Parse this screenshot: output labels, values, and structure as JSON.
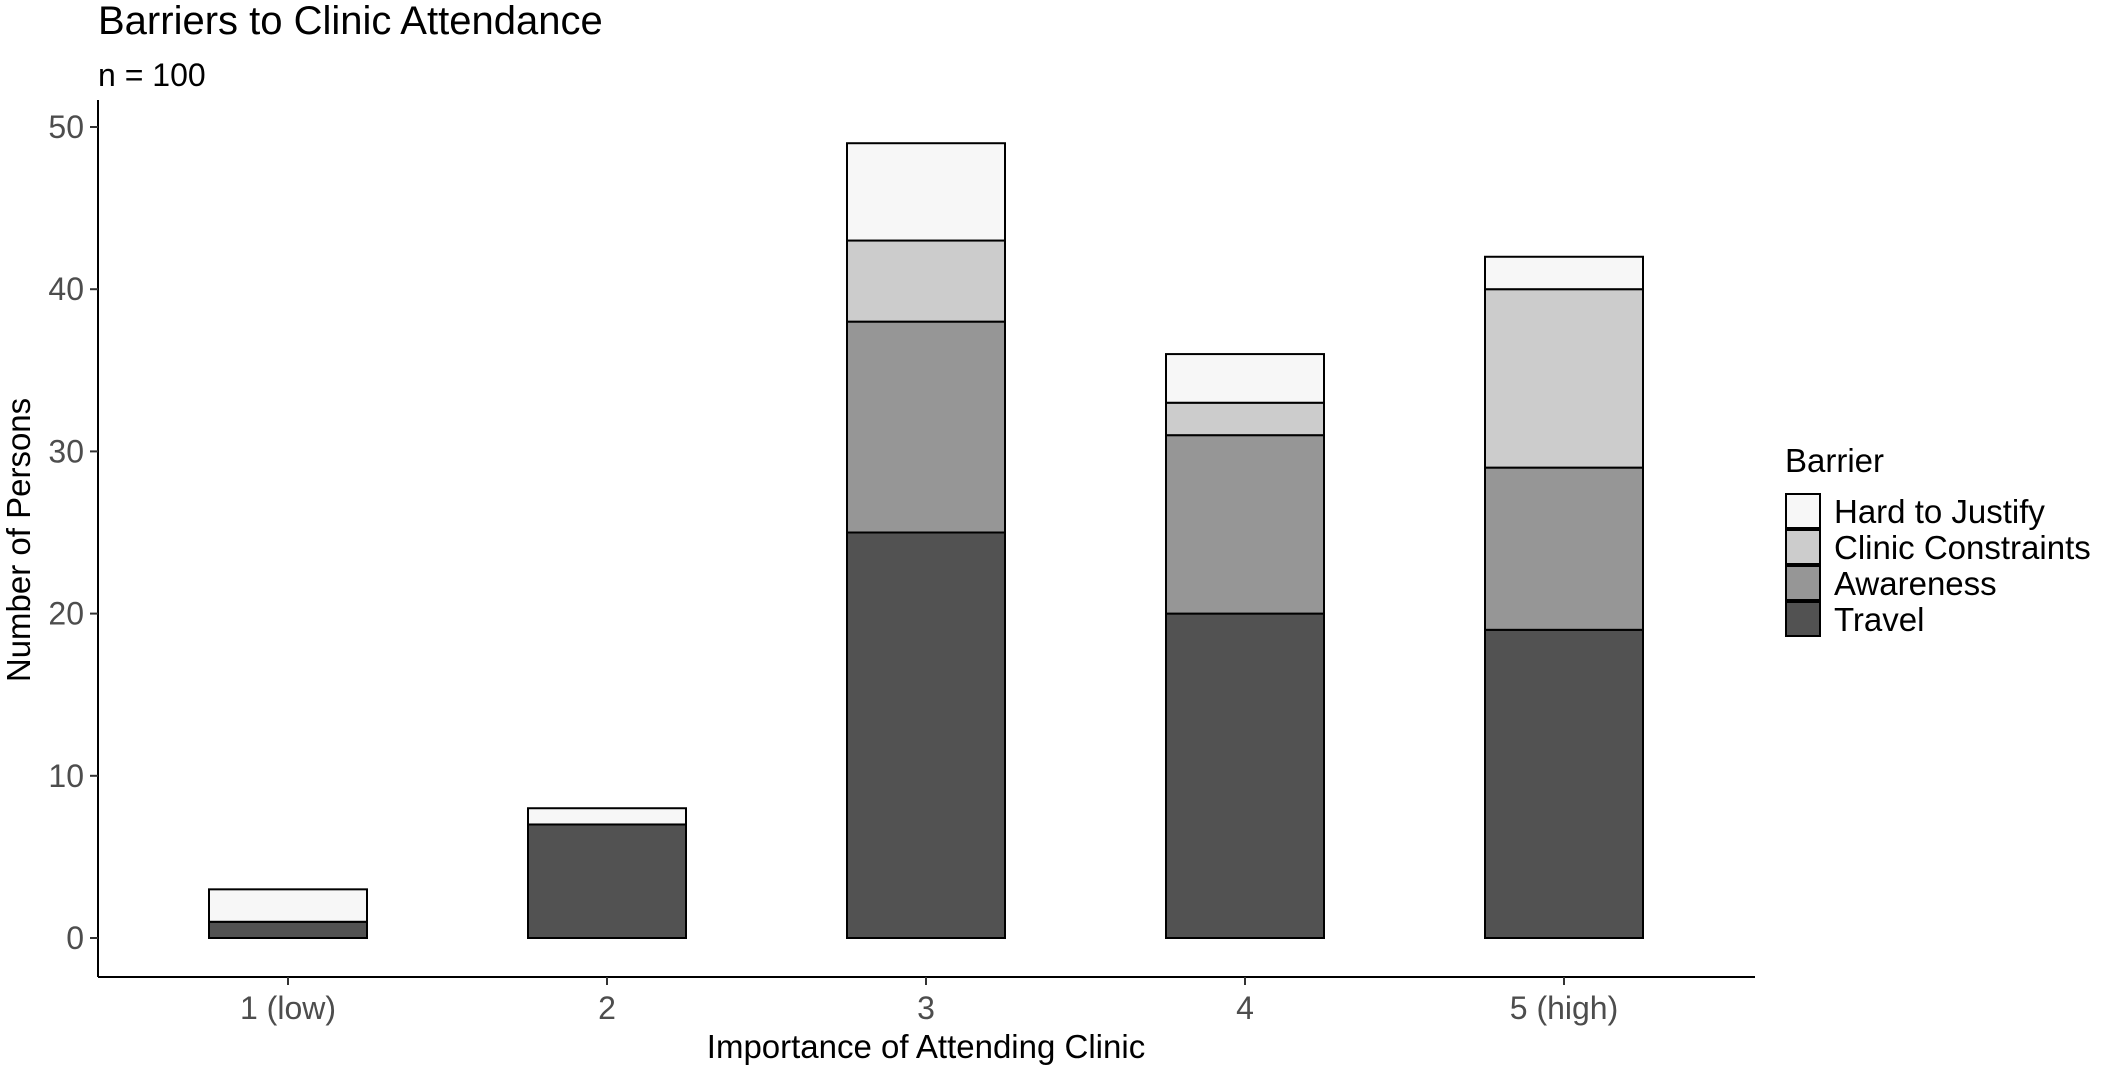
{
  "chart_data": {
    "type": "bar",
    "stacked": true,
    "title": "Barriers to Clinic Attendance",
    "subtitle": "n = 100",
    "xlabel": "Importance of Attending Clinic",
    "ylabel": "Number of Persons",
    "categories": [
      "1 (low)",
      "2",
      "3",
      "4",
      "5 (high)"
    ],
    "ylim": [
      0,
      52
    ],
    "yticks": [
      0,
      10,
      20,
      30,
      40,
      50
    ],
    "grid": false,
    "legend": {
      "title": "Barrier",
      "placement": "right",
      "order": [
        "Hard to Justify",
        "Clinic Constraints",
        "Awareness",
        "Travel"
      ]
    },
    "series": [
      {
        "name": "Travel",
        "color": "#525252",
        "values": [
          1,
          7,
          25,
          20,
          19
        ]
      },
      {
        "name": "Awareness",
        "color": "#969696",
        "values": [
          0,
          0,
          13,
          11,
          10
        ]
      },
      {
        "name": "Clinic Constraints",
        "color": "#cccccc",
        "values": [
          0,
          0,
          5,
          2,
          11
        ]
      },
      {
        "name": "Hard to Justify",
        "color": "#f7f7f7",
        "values": [
          2,
          1,
          6,
          3,
          2
        ]
      }
    ]
  }
}
